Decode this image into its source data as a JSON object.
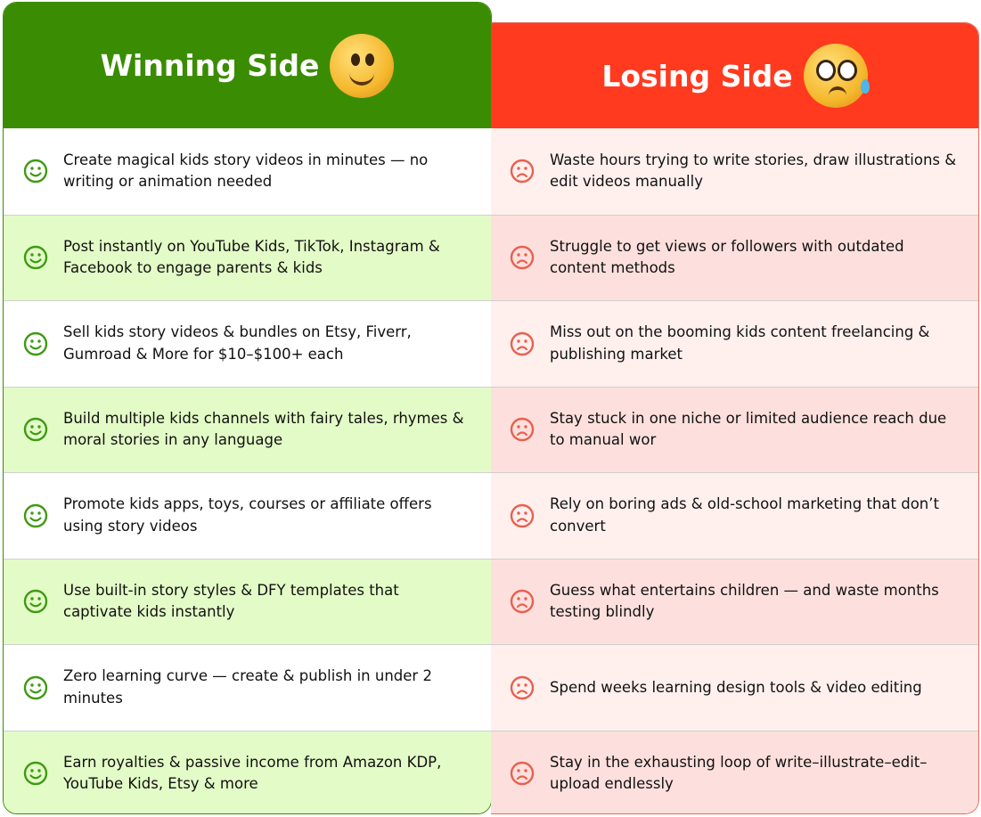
{
  "winning": {
    "title": "Winning Side",
    "title_emoji": "thumbs-up-smiley-emoji",
    "accent": "#3a8c02",
    "row_icon": "smile-icon",
    "items": [
      "Create magical kids story videos in minutes — no writing or animation needed",
      "Post instantly on YouTube Kids, TikTok, Instagram & Facebook to engage parents & kids",
      "Sell kids story videos & bundles on Etsy, Fiverr, Gumroad & More for $10–$100+ each",
      "Build multiple kids channels with fairy tales, rhymes & moral stories in any language",
      "Promote kids apps, toys, courses or affiliate offers using story videos",
      "Use built-in story styles & DFY templates that captivate kids instantly",
      "Zero learning curve — create & publish in under 2 minutes",
      "Earn royalties & passive income from Amazon KDP, YouTube Kids, Etsy & more"
    ]
  },
  "losing": {
    "title": "Losing Side",
    "title_emoji": "pleading-tear-emoji",
    "accent": "#ff3a1f",
    "row_icon": "frown-icon",
    "items": [
      "Waste hours trying to write stories, draw illustrations & edit videos manually",
      "Struggle to get views or followers with outdated content methods",
      "Miss out on the booming kids content freelancing & publishing market",
      "Stay stuck in one niche or limited audience reach due to manual wor",
      "Rely on boring ads & old-school marketing that don’t convert",
      "Guess what entertains children — and waste months testing blindly",
      "Spend weeks learning design tools & video editing",
      "Stay in the exhausting loop of write–illustrate–edit–upload endlessly"
    ]
  }
}
